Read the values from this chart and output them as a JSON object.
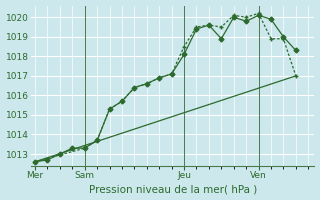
{
  "background_color": "#cce8ed",
  "plot_bg_color": "#cce8ed",
  "grid_color": "#ffffff",
  "line_color": "#2d6a2d",
  "spine_color": "#4a7a4a",
  "title": "Pression niveau de la mer( hPa )",
  "ylim": [
    1012.4,
    1020.6
  ],
  "yticks": [
    1013,
    1014,
    1015,
    1016,
    1017,
    1018,
    1019,
    1020
  ],
  "day_labels": [
    "Mer",
    "Sam",
    "Jeu",
    "Ven"
  ],
  "day_positions": [
    0,
    4,
    12,
    18
  ],
  "xlim": [
    -0.3,
    22.5
  ],
  "series1_x": [
    0,
    1,
    2,
    3,
    4,
    5,
    6,
    7,
    8,
    9,
    10,
    11,
    12,
    13,
    14,
    15,
    16,
    17,
    18,
    19,
    20,
    21
  ],
  "series1_y": [
    1012.6,
    1012.7,
    1013.0,
    1013.3,
    1013.3,
    1013.7,
    1015.3,
    1015.7,
    1016.4,
    1016.6,
    1016.9,
    1017.1,
    1018.1,
    1019.4,
    1019.6,
    1018.9,
    1020.0,
    1019.8,
    1020.1,
    1019.9,
    1019.0,
    1018.3
  ],
  "series2_x": [
    0,
    4,
    5,
    6,
    7,
    8,
    9,
    10,
    11,
    12,
    13,
    14,
    15,
    16,
    17,
    18,
    19,
    20,
    21
  ],
  "series2_y": [
    1012.6,
    1013.3,
    1013.7,
    1015.3,
    1015.7,
    1016.4,
    1016.6,
    1016.9,
    1017.1,
    1018.5,
    1019.5,
    1019.6,
    1019.5,
    1020.1,
    1020.0,
    1020.2,
    1018.9,
    1018.9,
    1017.0
  ],
  "series3_x": [
    0,
    21
  ],
  "series3_y": [
    1012.6,
    1017.0
  ],
  "vline_x": [
    4,
    12,
    18
  ],
  "title_fontsize": 7.5,
  "tick_fontsize": 6.5,
  "xlabel_fontsize": 7.5
}
